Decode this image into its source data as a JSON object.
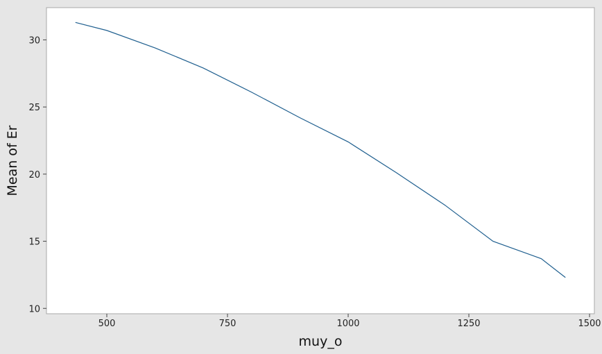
{
  "chart_data": {
    "type": "line",
    "title": "",
    "xlabel": "muy_o",
    "ylabel": "Mean of Er",
    "xlim": [
      375,
      1510
    ],
    "ylim": [
      9.6,
      32.4
    ],
    "xticks": [
      500,
      750,
      1000,
      1250,
      1500
    ],
    "yticks": [
      10,
      15,
      20,
      25,
      30
    ],
    "grid": false,
    "line_color": "#1f5f8f",
    "series": [
      {
        "x": [
          435,
          500,
          600,
          700,
          800,
          900,
          1000,
          1100,
          1200,
          1300,
          1400,
          1450
        ],
        "y": [
          31.3,
          30.7,
          29.4,
          27.9,
          26.1,
          24.2,
          22.4,
          20.1,
          17.7,
          15.0,
          13.7,
          12.3
        ]
      }
    ]
  }
}
